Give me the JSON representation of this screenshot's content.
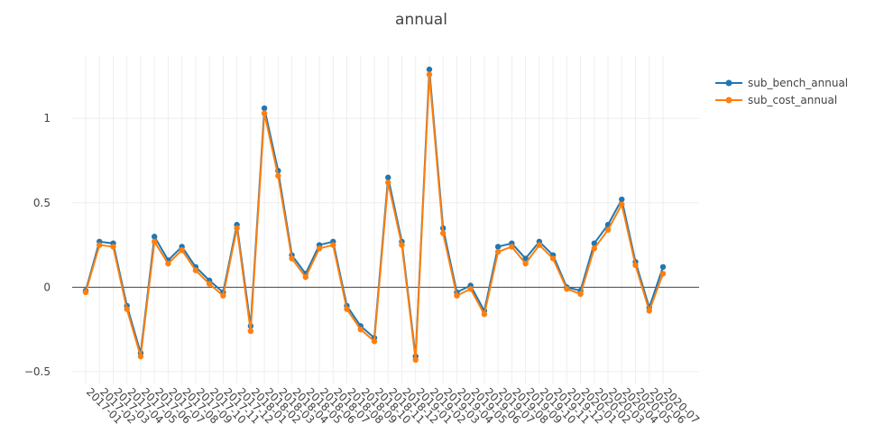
{
  "chart_data": {
    "type": "line",
    "title": "annual",
    "xlabel": "",
    "ylabel": "",
    "ylim": [
      -0.57,
      1.37
    ],
    "yticks": [
      -0.5,
      0,
      0.5,
      1
    ],
    "ytick_labels": [
      "−0.5",
      "0",
      "0.5",
      "1"
    ],
    "grid": true,
    "legend_position": "top-right",
    "categories": [
      "2017-01",
      "2017-02",
      "2017-03",
      "2017-04",
      "2017-05",
      "2017-06",
      "2017-07",
      "2017-08",
      "2017-09",
      "2017-10",
      "2017-11",
      "2017-12",
      "2018-01",
      "2018-02",
      "2018-03",
      "2018-04",
      "2018-05",
      "2018-06",
      "2018-07",
      "2018-08",
      "2018-09",
      "2018-10",
      "2018-11",
      "2018-12",
      "2019-01",
      "2019-02",
      "2019-03",
      "2019-04",
      "2019-05",
      "2019-06",
      "2019-07",
      "2019-08",
      "2019-09",
      "2019-10",
      "2019-11",
      "2019-12",
      "2020-01",
      "2020-02",
      "2020-03",
      "2020-04",
      "2020-05",
      "2020-06",
      "2020-07"
    ],
    "series": [
      {
        "name": "sub_bench_annual",
        "color": "#1f77b4",
        "values": [
          -0.02,
          0.27,
          0.26,
          -0.11,
          -0.39,
          0.3,
          0.16,
          0.24,
          0.12,
          0.04,
          -0.03,
          0.37,
          -0.23,
          1.06,
          0.69,
          0.19,
          0.08,
          0.25,
          0.27,
          -0.11,
          -0.23,
          -0.3,
          0.65,
          0.27,
          -0.41,
          1.29,
          0.35,
          -0.03,
          0.01,
          -0.14,
          0.24,
          0.26,
          0.17,
          0.27,
          0.19,
          0.0,
          -0.02,
          0.26,
          0.37,
          0.52,
          0.15,
          -0.12,
          0.12
        ]
      },
      {
        "name": "sub_cost_annual",
        "color": "#ff7f0e",
        "values": [
          -0.03,
          0.25,
          0.24,
          -0.13,
          -0.41,
          0.27,
          0.14,
          0.22,
          0.1,
          0.02,
          -0.05,
          0.35,
          -0.26,
          1.03,
          0.66,
          0.17,
          0.06,
          0.23,
          0.25,
          -0.13,
          -0.25,
          -0.32,
          0.62,
          0.25,
          -0.43,
          1.26,
          0.32,
          -0.05,
          -0.01,
          -0.16,
          0.21,
          0.24,
          0.14,
          0.25,
          0.17,
          -0.01,
          -0.04,
          0.23,
          0.34,
          0.49,
          0.13,
          -0.14,
          0.08
        ]
      }
    ]
  }
}
